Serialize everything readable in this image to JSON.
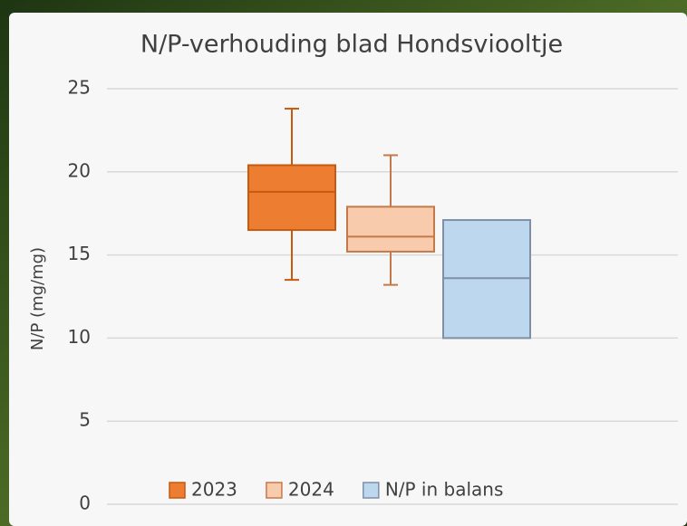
{
  "chart_data": {
    "type": "box",
    "title": "N/P-verhouding blad Hondsviooltje",
    "y_label": "N/P (mg/mg)",
    "ylim": [
      0,
      25
    ],
    "yticks": [
      0,
      5,
      10,
      15,
      20,
      25
    ],
    "grid": true,
    "legend": "bottom",
    "series": [
      {
        "name": "2023",
        "color": "#ed7d31",
        "edge": "#c55a11",
        "min": 13.5,
        "q1": 16.5,
        "median": 18.8,
        "q3": 20.4,
        "max": 23.8
      },
      {
        "name": "2024",
        "color": "#f8cbad",
        "edge": "#c5794a",
        "min": 13.2,
        "q1": 15.2,
        "median": 16.1,
        "q3": 17.9,
        "max": 21
      },
      {
        "name": "N/P in balans",
        "color": "#bdd7ee",
        "edge": "#7f8fa6",
        "q1": 10,
        "median": 13.6,
        "q3": 17.1
      }
    ]
  }
}
